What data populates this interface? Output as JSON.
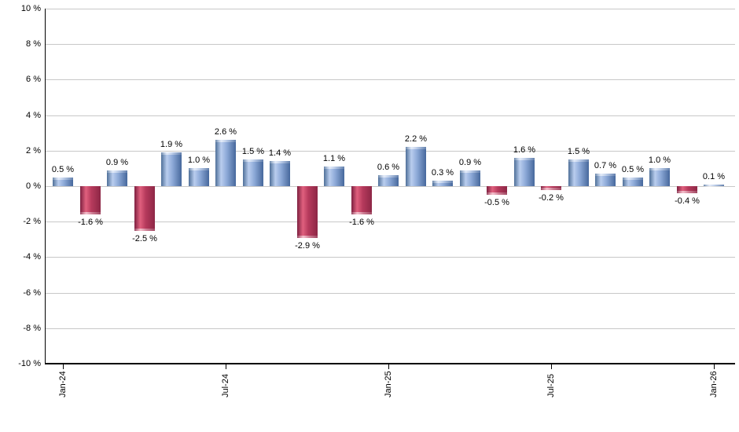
{
  "chart_data": {
    "type": "bar",
    "title": "",
    "categories": [
      "Jan-24",
      "Feb-24",
      "Mar-24",
      "Apr-24",
      "May-24",
      "Jun-24",
      "Jul-24",
      "Aug-24",
      "Sep-24",
      "Oct-24",
      "Nov-24",
      "Dec-24",
      "Jan-25",
      "Feb-25",
      "Mar-25",
      "Apr-25",
      "May-25",
      "Jun-25",
      "Jul-25",
      "Aug-25",
      "Sep-25",
      "Oct-25",
      "Nov-25",
      "Dec-25",
      "Jan-26"
    ],
    "values": [
      0.5,
      -1.6,
      0.9,
      -2.5,
      1.9,
      1.0,
      2.6,
      1.5,
      1.4,
      -2.9,
      1.1,
      -1.6,
      0.6,
      2.2,
      0.3,
      0.9,
      -0.5,
      1.6,
      -0.2,
      1.5,
      0.7,
      0.5,
      1.0,
      -0.4,
      0.1
    ],
    "bar_labels": [
      "0.5 %",
      "-1.6 %",
      "0.9 %",
      "-2.5 %",
      "1.9 %",
      "1.0 %",
      "2.6 %",
      "1.5 %",
      "1.4 %",
      "-2.9 %",
      "1.1 %",
      "-1.6 %",
      "0.6 %",
      "2.2 %",
      "0.3 %",
      "0.9 %",
      "-0.5 %",
      "1.6 %",
      "-0.2 %",
      "1.5 %",
      "0.7 %",
      "0.5 %",
      "1.0 %",
      "-0.4 %",
      "0.1 %"
    ],
    "x_axis": {
      "tick_labels": [
        "Jan-24",
        "Jul-24",
        "Jan-25",
        "Jul-25",
        "Jan-26"
      ],
      "tick_indices": [
        0,
        6,
        12,
        18,
        24
      ]
    },
    "y_axis": {
      "min": -10,
      "max": 10,
      "step": 2,
      "tick_labels": [
        "10 %",
        "8 %",
        "6 %",
        "4 %",
        "2 %",
        "0 %",
        "-2 %",
        "-4 %",
        "-6 %",
        "-8 %",
        "-10 %"
      ]
    },
    "grid": true,
    "legend_position": "none",
    "colors": {
      "positive_bar_gradient": [
        "#4f7099",
        "#b9cdee",
        "#8eaad8",
        "#46689c"
      ],
      "negative_bar_gradient": [
        "#7d2040",
        "#e0607e",
        "#b63a5c",
        "#8d2746"
      ],
      "gridline": "#c8c8c8",
      "axis": "#000000",
      "text": "#000000",
      "background": "#ffffff"
    }
  }
}
